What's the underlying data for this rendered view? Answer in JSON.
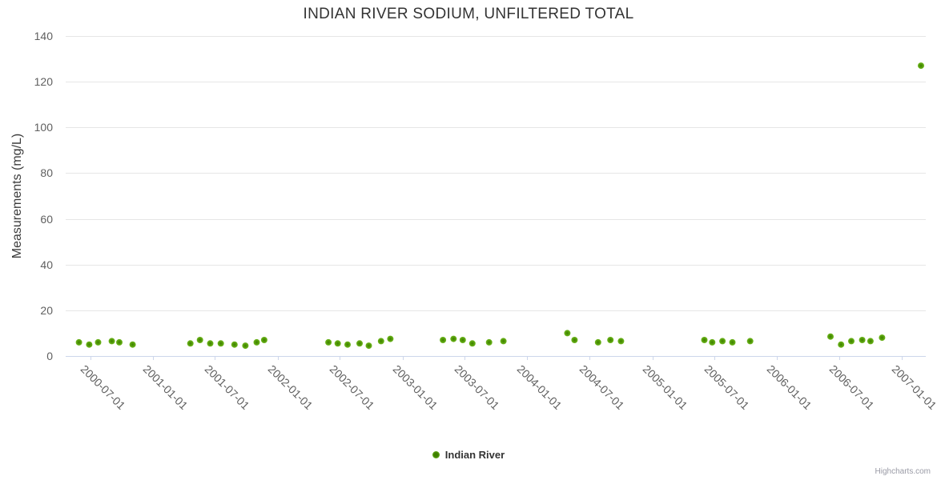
{
  "credits": "Highcharts.com",
  "legend": {
    "label": "Indian River"
  },
  "colors": {
    "title_color": "#333333",
    "axis_label": "#606060",
    "ytitle_color": "#3c3c3c",
    "grid_line": "#e6e6e6",
    "axis_line": "#ccd6eb",
    "legend_text": "#333333",
    "credits_color": "#999aa5",
    "point_center": "#3e7f00",
    "point_edge": "#6fb71f"
  },
  "chart_data": {
    "type": "scatter",
    "title": "INDIAN RIVER SODIUM, UNFILTERED TOTAL",
    "xlabel": "",
    "ylabel": "Measurements (mg/L)",
    "ylim": [
      0,
      140
    ],
    "yticks": [
      0,
      20,
      40,
      60,
      80,
      100,
      120,
      140
    ],
    "xlim": [
      "2000-04-20",
      "2007-03-12"
    ],
    "xticks": [
      "2000-07-01",
      "2001-01-01",
      "2001-07-01",
      "2002-01-01",
      "2002-07-01",
      "2003-01-01",
      "2003-07-01",
      "2004-01-01",
      "2004-07-01",
      "2005-01-01",
      "2005-07-01",
      "2006-01-01",
      "2006-07-01",
      "2007-01-01"
    ],
    "grid": "horizontal-only",
    "legend_position": "bottom-center",
    "series": [
      {
        "name": "Indian River",
        "points": [
          [
            "2000-05-29",
            6
          ],
          [
            "2000-06-28",
            5
          ],
          [
            "2000-07-24",
            6
          ],
          [
            "2000-09-02",
            6.5
          ],
          [
            "2000-09-24",
            6
          ],
          [
            "2000-11-02",
            5
          ],
          [
            "2001-04-20",
            5.5
          ],
          [
            "2001-05-18",
            7
          ],
          [
            "2001-06-17",
            5.5
          ],
          [
            "2001-07-18",
            5.5
          ],
          [
            "2001-08-27",
            5
          ],
          [
            "2001-09-28",
            4.5
          ],
          [
            "2001-10-31",
            6
          ],
          [
            "2001-11-22",
            7
          ],
          [
            "2002-05-29",
            6
          ],
          [
            "2002-06-25",
            5.5
          ],
          [
            "2002-07-24",
            5
          ],
          [
            "2002-08-28",
            5.5
          ],
          [
            "2002-09-24",
            4.5
          ],
          [
            "2002-10-30",
            6.5
          ],
          [
            "2002-11-26",
            7.5
          ],
          [
            "2003-04-29",
            7
          ],
          [
            "2003-05-30",
            7.5
          ],
          [
            "2003-06-26",
            7
          ],
          [
            "2003-07-24",
            5.5
          ],
          [
            "2003-09-11",
            6
          ],
          [
            "2003-10-23",
            6.5
          ],
          [
            "2004-04-27",
            10
          ],
          [
            "2004-05-18",
            7
          ],
          [
            "2004-07-26",
            6
          ],
          [
            "2004-08-31",
            7
          ],
          [
            "2004-10-01",
            6.5
          ],
          [
            "2005-06-02",
            7
          ],
          [
            "2005-06-25",
            6
          ],
          [
            "2005-07-25",
            6.5
          ],
          [
            "2005-08-23",
            6
          ],
          [
            "2005-10-14",
            6.5
          ],
          [
            "2006-06-06",
            8.5
          ],
          [
            "2006-07-07",
            5
          ],
          [
            "2006-08-06",
            6.5
          ],
          [
            "2006-09-07",
            7
          ],
          [
            "2006-10-01",
            6.5
          ],
          [
            "2006-11-04",
            8
          ],
          [
            "2007-02-26",
            127
          ]
        ]
      }
    ]
  }
}
